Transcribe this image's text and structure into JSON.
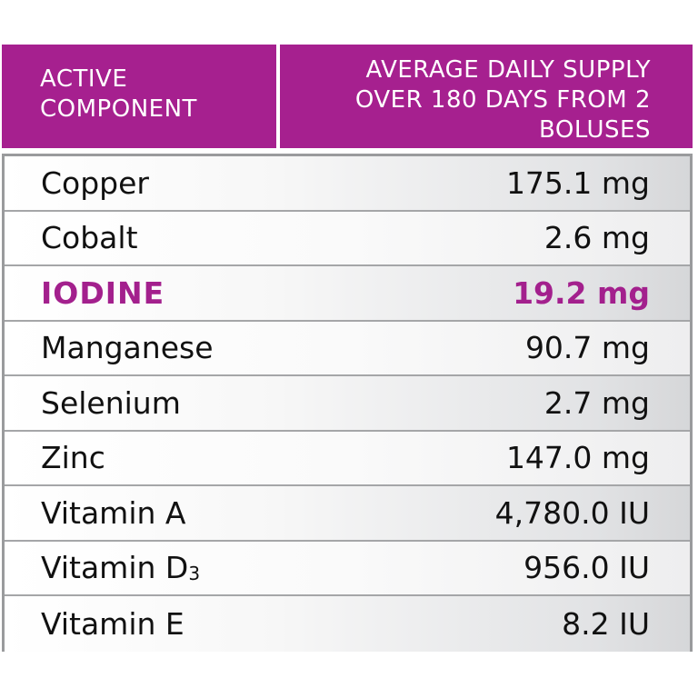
{
  "header": {
    "col1": [
      "ACTIVE",
      "COMPONENT"
    ],
    "col2": [
      "AVERAGE DAILY SUPPLY",
      "OVER 180 DAYS FROM 2",
      "BOLUSES"
    ]
  },
  "rows": [
    {
      "name": "Copper",
      "value": "175.1 mg"
    },
    {
      "name": "Cobalt",
      "value": "2.6 mg"
    },
    {
      "name": "IODINE",
      "value": "19.2 mg"
    },
    {
      "name": "Manganese",
      "value": "90.7 mg"
    },
    {
      "name": "Selenium",
      "value": "2.7 mg"
    },
    {
      "name": "Zinc",
      "value": "147.0 mg"
    },
    {
      "name": "Vitamin A",
      "value": "4,780.0 IU"
    },
    {
      "name": "Vitamin D",
      "sub": "3",
      "value": "956.0 IU"
    },
    {
      "name": "Vitamin E",
      "value": "8.2 IU"
    }
  ],
  "colors": {
    "header": "#a6208f",
    "highlight": "#a3208d"
  }
}
